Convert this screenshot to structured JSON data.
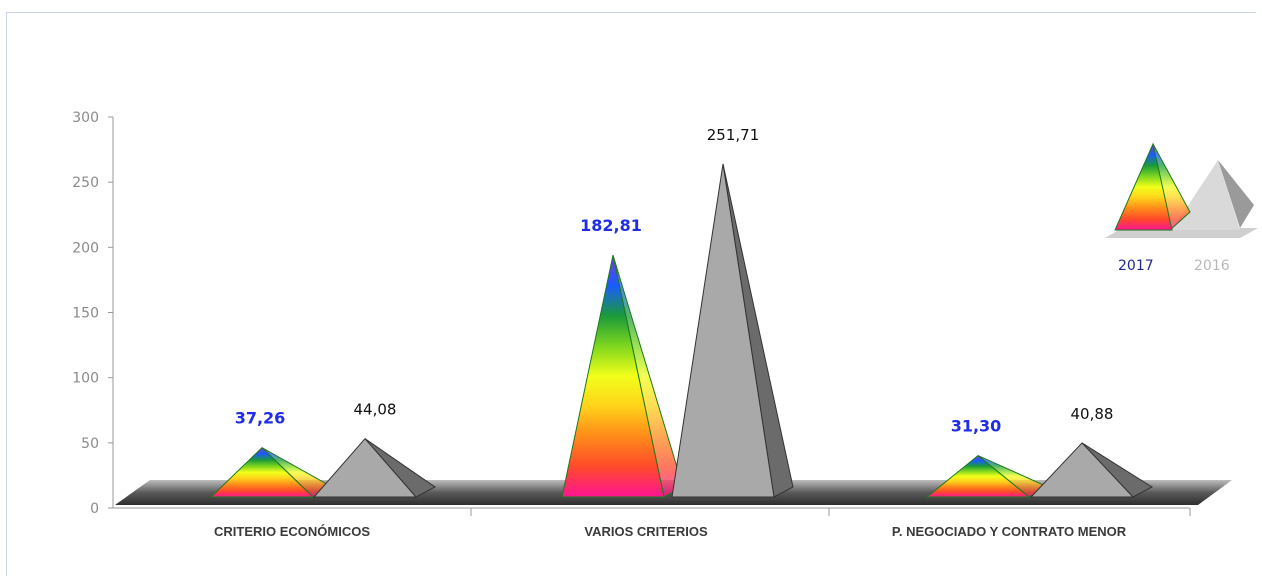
{
  "chart_data": {
    "type": "bar",
    "style": "3d-pyramid",
    "categories": [
      "CRITERIO ECONÓMICOS",
      "VARIOS CRITERIOS",
      "P. NEGOCIADO Y CONTRATO MENOR"
    ],
    "series": [
      {
        "name": "2017",
        "values": [
          37.26,
          182.81,
          31.3
        ],
        "labels": [
          "37,26",
          "182,81",
          "31,30"
        ],
        "label_color": "#1f2de6"
      },
      {
        "name": "2016",
        "values": [
          44.08,
          251.71,
          40.88
        ],
        "labels": [
          "44,08",
          "251,71",
          "40,88"
        ],
        "label_color": "#111111"
      }
    ],
    "y_ticks": [
      "0",
      "50",
      "100",
      "150",
      "200",
      "250",
      "300"
    ],
    "ylim": [
      0,
      300
    ],
    "grid": false,
    "legend": {
      "position": "right",
      "items": [
        "2017",
        "2016"
      ]
    },
    "colors": {
      "rainbow": [
        "#ff1493",
        "#ff4a2a",
        "#ff8a1a",
        "#ffd21a",
        "#f2ff1a",
        "#7dd61e",
        "#1a9a3a",
        "#1a5cff",
        "#7b3bd6"
      ],
      "gray_face": "#a9a9a9",
      "gray_side": "#6b6b6b",
      "floor": "#5a5a5a"
    }
  }
}
